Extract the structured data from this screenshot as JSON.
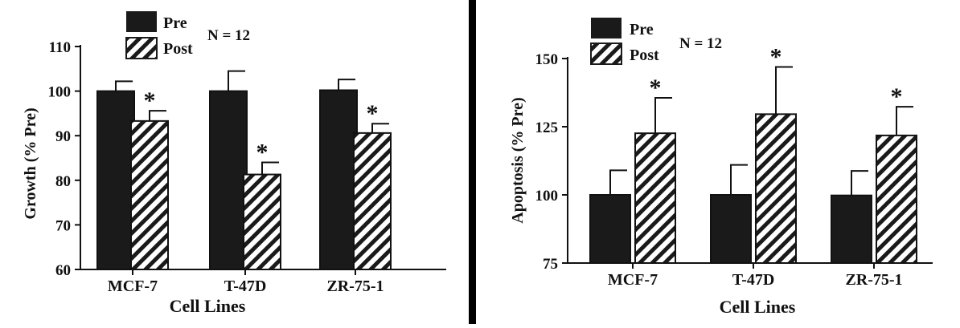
{
  "colors": {
    "pre": "#1a1a1a",
    "post_hatch": "#1a1a1a",
    "background": "#ffffff",
    "divider": "#000000"
  },
  "chart_data": [
    {
      "type": "bar",
      "xlabel": "Cell Lines",
      "ylabel": "Growth (% Pre)",
      "ylim": [
        60,
        110
      ],
      "yticks": [
        60,
        70,
        80,
        90,
        100,
        110
      ],
      "annotation": "N = 12",
      "legend_position": "top-left",
      "categories": [
        "MCF-7",
        "T-47D",
        "ZR-75-1"
      ],
      "series": [
        {
          "name": "Pre",
          "values": [
            100,
            100,
            100.2
          ],
          "errors": [
            2.2,
            4.5,
            2.4
          ],
          "sig": [
            false,
            false,
            false
          ]
        },
        {
          "name": "Post",
          "values": [
            93.3,
            81.3,
            90.6
          ],
          "errors": [
            2.3,
            2.7,
            2.1
          ],
          "sig": [
            true,
            true,
            true
          ]
        }
      ],
      "sig_marker": "*"
    },
    {
      "type": "bar",
      "xlabel": "Cell Lines",
      "ylabel": "Apoptosis (% Pre)",
      "ylim": [
        75,
        150
      ],
      "yticks": [
        75,
        100,
        125,
        150
      ],
      "annotation": "N = 12",
      "legend_position": "top-left",
      "categories": [
        "MCF-7",
        "T-47D",
        "ZR-75-1"
      ],
      "series": [
        {
          "name": "Pre",
          "values": [
            100,
            100,
            99.8
          ],
          "errors": [
            9,
            11,
            9
          ],
          "sig": [
            false,
            false,
            false
          ]
        },
        {
          "name": "Post",
          "values": [
            122.6,
            129.6,
            121.8
          ],
          "errors": [
            13,
            17.3,
            10.5
          ],
          "sig": [
            true,
            true,
            true
          ]
        }
      ],
      "sig_marker": "*"
    }
  ]
}
